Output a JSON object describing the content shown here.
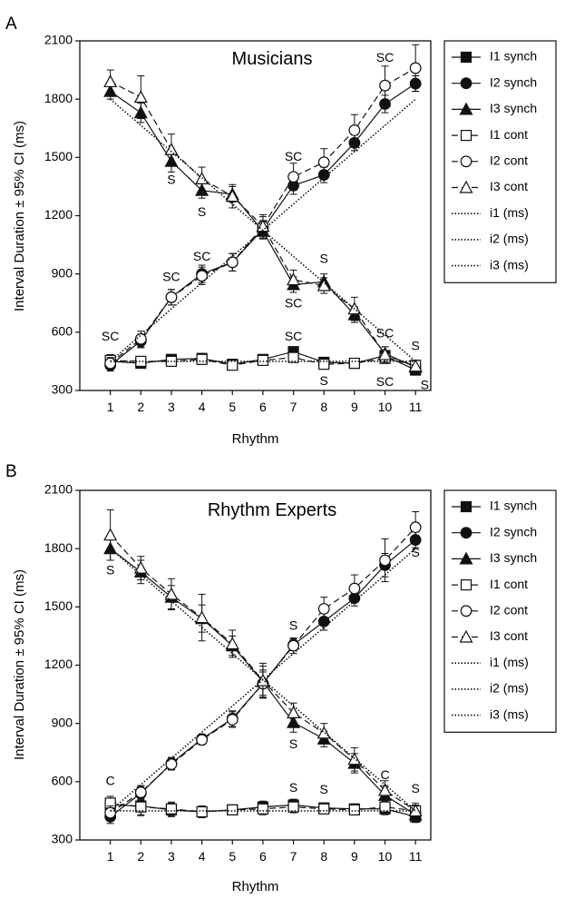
{
  "chart_data": [
    {
      "type": "line",
      "panel_label": "A",
      "title": "Musicians",
      "xlabel": "Rhythm",
      "ylabel": "Interval Duration ± 95% CI (ms)",
      "x": [
        1,
        2,
        3,
        4,
        5,
        6,
        7,
        8,
        9,
        10,
        11
      ],
      "xlim": [
        0,
        11.5
      ],
      "ylim": [
        300,
        2100
      ],
      "yticks": [
        300,
        600,
        900,
        1200,
        1500,
        1800,
        2100
      ],
      "legend_position": "right",
      "series": [
        {
          "name": "I1 synch",
          "marker": "square-filled",
          "line": "solid",
          "values": [
            450,
            440,
            460,
            465,
            435,
            460,
            500,
            445,
            440,
            480,
            405
          ],
          "ci": [
            30,
            25,
            25,
            25,
            20,
            20,
            25,
            25,
            25,
            25,
            25
          ]
        },
        {
          "name": "I2 synch",
          "marker": "circle-filled",
          "line": "solid",
          "values": [
            430,
            555,
            780,
            900,
            960,
            1130,
            1355,
            1410,
            1575,
            1775,
            1880
          ],
          "ci": [
            30,
            35,
            40,
            45,
            45,
            45,
            45,
            40,
            40,
            45,
            40
          ]
        },
        {
          "name": "I3 synch",
          "marker": "triangle-filled",
          "line": "solid",
          "values": [
            1840,
            1730,
            1480,
            1330,
            1310,
            1120,
            845,
            860,
            690,
            490,
            420
          ],
          "ci": [
            40,
            50,
            55,
            40,
            40,
            40,
            40,
            40,
            40,
            35,
            30
          ]
        },
        {
          "name": "I1 cont",
          "marker": "square-open",
          "line": "dashed",
          "values": [
            455,
            450,
            450,
            460,
            430,
            455,
            470,
            435,
            440,
            465,
            430
          ],
          "ci": [
            30,
            25,
            25,
            25,
            20,
            20,
            25,
            25,
            25,
            25,
            25
          ]
        },
        {
          "name": "I2 cont",
          "marker": "circle-open",
          "line": "dashed",
          "values": [
            440,
            565,
            780,
            890,
            960,
            1145,
            1400,
            1475,
            1640,
            1870,
            1960
          ],
          "ci": [
            30,
            40,
            40,
            45,
            45,
            50,
            70,
            70,
            80,
            100,
            120
          ]
        },
        {
          "name": "I3 cont",
          "marker": "triangle-open",
          "line": "dashed",
          "values": [
            1890,
            1810,
            1540,
            1390,
            1300,
            1145,
            870,
            840,
            720,
            485,
            425
          ],
          "ci": [
            60,
            110,
            80,
            60,
            60,
            60,
            50,
            40,
            60,
            40,
            30
          ]
        },
        {
          "name": "i1 (ms)",
          "marker": "none",
          "line": "dotted",
          "values": [
            450,
            450,
            450,
            450,
            450,
            450,
            450,
            450,
            450,
            450,
            450
          ]
        },
        {
          "name": "i2 (ms)",
          "marker": "none",
          "line": "dotted",
          "values": [
            450,
            585,
            720,
            855,
            990,
            1125,
            1260,
            1395,
            1530,
            1665,
            1800
          ]
        },
        {
          "name": "i3 (ms)",
          "marker": "none",
          "line": "dotted",
          "values": [
            1800,
            1665,
            1530,
            1395,
            1260,
            1125,
            990,
            855,
            720,
            585,
            450
          ]
        }
      ],
      "annotations": [
        {
          "text": "SC",
          "x": 1,
          "y": 575
        },
        {
          "text": "SC",
          "x": 3,
          "y": 880
        },
        {
          "text": "SC",
          "x": 4,
          "y": 985
        },
        {
          "text": "S",
          "x": 3,
          "y": 1380
        },
        {
          "text": "S",
          "x": 4,
          "y": 1215
        },
        {
          "text": "SC",
          "x": 7,
          "y": 1500
        },
        {
          "text": "SC",
          "x": 7,
          "y": 745
        },
        {
          "text": "S",
          "x": 8,
          "y": 975
        },
        {
          "text": "SC",
          "x": 10,
          "y": 2010
        },
        {
          "text": "SC",
          "x": 7,
          "y": 575
        },
        {
          "text": "S",
          "x": 8,
          "y": 345
        },
        {
          "text": "SC",
          "x": 10,
          "y": 590
        },
        {
          "text": "SC",
          "x": 10,
          "y": 340
        },
        {
          "text": "S",
          "x": 11,
          "y": 525
        },
        {
          "text": "S",
          "x": 11.3,
          "y": 325
        }
      ]
    },
    {
      "type": "line",
      "panel_label": "B",
      "title": "Rhythm Experts",
      "xlabel": "Rhythm",
      "ylabel": "Interval Duration ± 95% CI (ms)",
      "x": [
        1,
        2,
        3,
        4,
        5,
        6,
        7,
        8,
        9,
        10,
        11
      ],
      "xlim": [
        0,
        11.5
      ],
      "ylim": [
        300,
        2100
      ],
      "yticks": [
        300,
        600,
        900,
        1200,
        1500,
        1800,
        2100
      ],
      "legend_position": "right",
      "series": [
        {
          "name": "I1 synch",
          "marker": "square-filled",
          "line": "solid",
          "values": [
            480,
            475,
            455,
            445,
            455,
            470,
            480,
            465,
            460,
            460,
            420
          ],
          "ci": [
            35,
            45,
            35,
            30,
            25,
            30,
            30,
            25,
            25,
            30,
            30
          ]
        },
        {
          "name": "I2 synch",
          "marker": "circle-filled",
          "line": "solid",
          "values": [
            420,
            540,
            695,
            820,
            925,
            1105,
            1305,
            1425,
            1545,
            1715,
            1845
          ],
          "ci": [
            35,
            35,
            30,
            25,
            40,
            60,
            30,
            45,
            40,
            60,
            40
          ]
        },
        {
          "name": "I3 synch",
          "marker": "triangle-filled",
          "line": "solid",
          "values": [
            1800,
            1680,
            1550,
            1440,
            1300,
            1115,
            905,
            820,
            695,
            530,
            430
          ],
          "ci": [
            60,
            60,
            60,
            70,
            50,
            80,
            50,
            40,
            50,
            50,
            30
          ]
        },
        {
          "name": "I1 cont",
          "marker": "square-open",
          "line": "dashed",
          "values": [
            490,
            470,
            460,
            445,
            455,
            460,
            470,
            460,
            455,
            470,
            450
          ],
          "ci": [
            35,
            45,
            35,
            30,
            25,
            30,
            30,
            25,
            25,
            30,
            30
          ]
        },
        {
          "name": "I2 cont",
          "marker": "circle-open",
          "line": "dashed",
          "values": [
            440,
            545,
            690,
            815,
            920,
            1105,
            1300,
            1490,
            1595,
            1740,
            1910
          ],
          "ci": [
            35,
            35,
            30,
            25,
            40,
            70,
            40,
            60,
            70,
            110,
            80
          ]
        },
        {
          "name": "I3 cont",
          "marker": "triangle-open",
          "line": "dashed",
          "values": [
            1870,
            1700,
            1565,
            1445,
            1310,
            1120,
            955,
            850,
            715,
            555,
            450
          ],
          "ci": [
            130,
            60,
            80,
            120,
            70,
            90,
            50,
            50,
            60,
            50,
            40
          ]
        },
        {
          "name": "i1 (ms)",
          "marker": "none",
          "line": "dotted",
          "values": [
            450,
            450,
            450,
            450,
            450,
            450,
            450,
            450,
            450,
            450,
            450
          ]
        },
        {
          "name": "i2 (ms)",
          "marker": "none",
          "line": "dotted",
          "values": [
            450,
            585,
            720,
            855,
            990,
            1125,
            1260,
            1395,
            1530,
            1665,
            1800
          ]
        },
        {
          "name": "i3 (ms)",
          "marker": "none",
          "line": "dotted",
          "values": [
            1800,
            1665,
            1530,
            1395,
            1260,
            1125,
            990,
            855,
            720,
            585,
            450
          ]
        }
      ],
      "annotations": [
        {
          "text": "S",
          "x": 1,
          "y": 1685
        },
        {
          "text": "S",
          "x": 7,
          "y": 1400
        },
        {
          "text": "S",
          "x": 7,
          "y": 790
        },
        {
          "text": "C",
          "x": 1,
          "y": 600
        },
        {
          "text": "S",
          "x": 7,
          "y": 565
        },
        {
          "text": "S",
          "x": 8,
          "y": 555
        },
        {
          "text": "C",
          "x": 10,
          "y": 630
        },
        {
          "text": "S",
          "x": 11,
          "y": 560
        },
        {
          "text": "S",
          "x": 11,
          "y": 1775
        }
      ]
    }
  ]
}
